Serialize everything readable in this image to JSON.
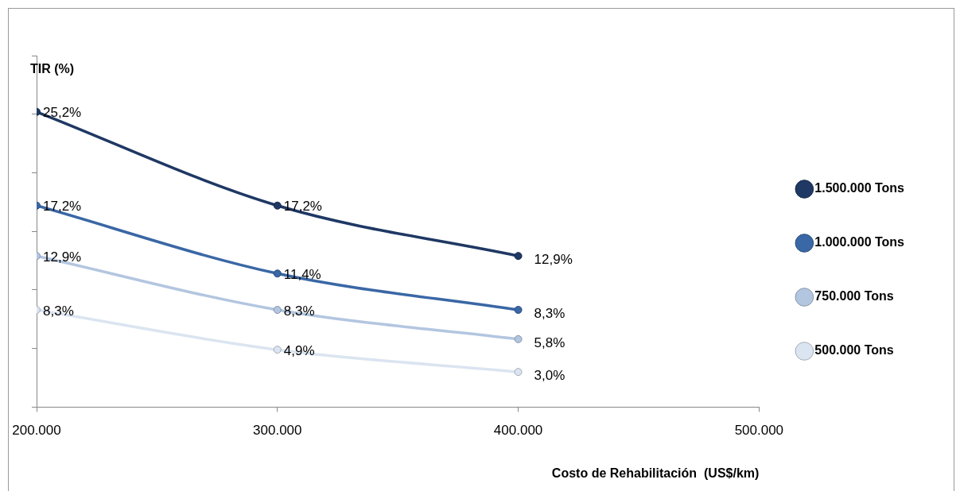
{
  "chart_data": {
    "type": "line",
    "xlabel": "Costo de Rehabilitación  (US$/km)",
    "ylabel": "TIR (%)",
    "xlim": [
      200000,
      500000
    ],
    "xticks": [
      {
        "value": 200000,
        "label": "200.000"
      },
      {
        "value": 300000,
        "label": "300.000"
      },
      {
        "value": 400000,
        "label": "400.000"
      },
      {
        "value": 500000,
        "label": "500.000"
      }
    ],
    "ylim": [
      0,
      30
    ],
    "yticks": [
      {
        "value": 0,
        "label": null
      },
      {
        "value": 5,
        "label": null
      },
      {
        "value": 10,
        "label": null
      },
      {
        "value": 15,
        "label": null
      },
      {
        "value": 20,
        "label": null
      },
      {
        "value": 25,
        "label": null
      },
      {
        "value": 30,
        "label": null
      }
    ],
    "tick_labels": "x",
    "legend": "right",
    "marker": "circle",
    "line_style": "solid",
    "x": [
      200000,
      300000,
      400000
    ],
    "series": [
      {
        "name": "1.500.000 Tons",
        "color": "#1f3864",
        "values": [
          25.2,
          17.2,
          12.9
        ],
        "value_labels": [
          "25,2%",
          "17,2%",
          "12,9%"
        ]
      },
      {
        "name": "1.000.000 Tons",
        "color": "#3a67a5",
        "values": [
          17.2,
          11.4,
          8.3
        ],
        "value_labels": [
          "17,2%",
          "11,4%",
          "8,3%"
        ]
      },
      {
        "name": "750.000 Tons",
        "color": "#b3c6e0",
        "values": [
          12.9,
          8.3,
          5.8
        ],
        "value_labels": [
          "12,9%",
          "8,3%",
          "5,8%"
        ]
      },
      {
        "name": "500.000 Tons",
        "color": "#dbe5f1",
        "values": [
          8.3,
          4.9,
          3.0
        ],
        "value_labels": [
          "8,3%",
          "4,9%",
          "3,0%"
        ]
      }
    ]
  }
}
